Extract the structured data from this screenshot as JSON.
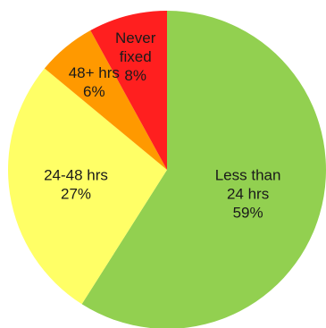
{
  "chart_data": {
    "type": "pie",
    "start_angle_deg": 0,
    "direction": "clockwise",
    "legend": "none",
    "slices": [
      {
        "label_lines": [
          "Less than",
          "24 hrs",
          "59%"
        ],
        "value": 59,
        "color": "#92d050"
      },
      {
        "label_lines": [
          "24-48 hrs",
          "27%"
        ],
        "value": 27,
        "color": "#ffff66"
      },
      {
        "label_lines": [
          "48+ hrs",
          "6%"
        ],
        "value": 6,
        "color": "#ff9900"
      },
      {
        "label_lines": [
          "Never",
          "fixed",
          "8%"
        ],
        "value": 8,
        "color": "#ff1f1f"
      }
    ]
  }
}
